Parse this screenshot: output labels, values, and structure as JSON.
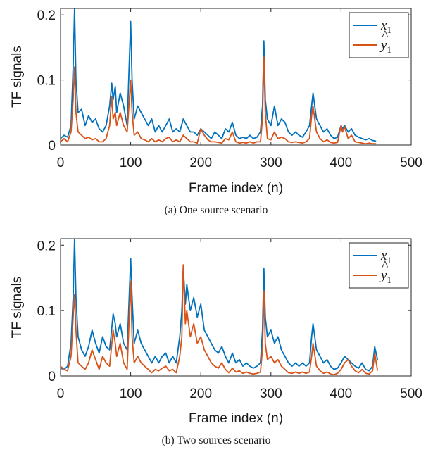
{
  "chart_data": [
    {
      "type": "line",
      "caption": "(a) One source scenario",
      "xlabel": "Frame index (n)",
      "ylabel": "TF signals",
      "xlim": [
        0,
        500
      ],
      "ylim": [
        0,
        0.21
      ],
      "xticks": [
        "0",
        "100",
        "200",
        "300",
        "400",
        "500"
      ],
      "yticks": [
        "0",
        "0.1",
        "0.2"
      ],
      "legend_position": "top-right",
      "grid": false,
      "series": [
        {
          "name": "x1",
          "legend_main": "x",
          "legend_sub": "1",
          "color": "#0072bd",
          "x": [
            0,
            5,
            10,
            15,
            18,
            20,
            22,
            25,
            30,
            35,
            40,
            45,
            50,
            55,
            60,
            65,
            70,
            73,
            75,
            78,
            80,
            85,
            90,
            95,
            100,
            102,
            105,
            110,
            115,
            120,
            125,
            130,
            135,
            140,
            145,
            150,
            155,
            160,
            165,
            170,
            175,
            180,
            185,
            190,
            195,
            200,
            205,
            210,
            215,
            220,
            225,
            230,
            235,
            240,
            245,
            250,
            255,
            260,
            265,
            270,
            275,
            280,
            285,
            288,
            290,
            292,
            295,
            300,
            305,
            310,
            315,
            320,
            325,
            330,
            335,
            340,
            345,
            350,
            355,
            358,
            360,
            365,
            370,
            375,
            380,
            385,
            390,
            395,
            400,
            402,
            405,
            410,
            415,
            420,
            425,
            430,
            435,
            440,
            445,
            450
          ],
          "y": [
            0.01,
            0.015,
            0.012,
            0.03,
            0.12,
            0.21,
            0.1,
            0.05,
            0.055,
            0.03,
            0.045,
            0.035,
            0.04,
            0.025,
            0.02,
            0.03,
            0.06,
            0.095,
            0.07,
            0.09,
            0.05,
            0.08,
            0.06,
            0.03,
            0.19,
            0.1,
            0.04,
            0.06,
            0.05,
            0.04,
            0.03,
            0.04,
            0.02,
            0.03,
            0.02,
            0.03,
            0.04,
            0.02,
            0.025,
            0.02,
            0.04,
            0.03,
            0.02,
            0.02,
            0.015,
            0.025,
            0.02,
            0.015,
            0.01,
            0.02,
            0.015,
            0.01,
            0.025,
            0.02,
            0.035,
            0.015,
            0.01,
            0.012,
            0.01,
            0.015,
            0.01,
            0.012,
            0.02,
            0.06,
            0.16,
            0.07,
            0.04,
            0.03,
            0.06,
            0.03,
            0.04,
            0.035,
            0.02,
            0.015,
            0.02,
            0.015,
            0.012,
            0.02,
            0.03,
            0.06,
            0.08,
            0.04,
            0.03,
            0.02,
            0.025,
            0.015,
            0.01,
            0.012,
            0.03,
            0.025,
            0.03,
            0.02,
            0.025,
            0.015,
            0.012,
            0.01,
            0.008,
            0.01,
            0.007,
            0.006
          ]
        },
        {
          "name": "y1_hat",
          "legend_main": "y",
          "legend_sub": "1",
          "color": "#d95319",
          "x": [
            0,
            5,
            10,
            15,
            18,
            20,
            22,
            25,
            30,
            35,
            40,
            45,
            50,
            55,
            60,
            65,
            70,
            73,
            75,
            78,
            80,
            85,
            90,
            95,
            100,
            102,
            105,
            110,
            115,
            120,
            125,
            130,
            135,
            140,
            145,
            150,
            155,
            160,
            165,
            170,
            175,
            180,
            185,
            190,
            195,
            200,
            205,
            210,
            215,
            220,
            225,
            230,
            235,
            240,
            245,
            250,
            255,
            260,
            265,
            270,
            275,
            280,
            285,
            288,
            290,
            292,
            295,
            300,
            305,
            310,
            315,
            320,
            325,
            330,
            335,
            340,
            345,
            350,
            355,
            358,
            360,
            365,
            370,
            375,
            380,
            385,
            390,
            395,
            400,
            402,
            405,
            410,
            415,
            420,
            425,
            430,
            435,
            440,
            445,
            450
          ],
          "y": [
            0.005,
            0.01,
            0.005,
            0.02,
            0.07,
            0.12,
            0.05,
            0.02,
            0.015,
            0.01,
            0.012,
            0.008,
            0.01,
            0.005,
            0.005,
            0.01,
            0.03,
            0.075,
            0.04,
            0.05,
            0.03,
            0.05,
            0.03,
            0.02,
            0.1,
            0.05,
            0.015,
            0.02,
            0.01,
            0.008,
            0.005,
            0.01,
            0.005,
            0.008,
            0.005,
            0.01,
            0.012,
            0.005,
            0.008,
            0.005,
            0.015,
            0.01,
            0.005,
            0.005,
            0.003,
            0.025,
            0.015,
            0.008,
            0.005,
            0.005,
            0.004,
            0.003,
            0.01,
            0.008,
            0.02,
            0.005,
            0.003,
            0.004,
            0.003,
            0.005,
            0.003,
            0.005,
            0.005,
            0.04,
            0.135,
            0.05,
            0.01,
            0.008,
            0.02,
            0.01,
            0.012,
            0.01,
            0.005,
            0.004,
            0.005,
            0.004,
            0.003,
            0.005,
            0.01,
            0.045,
            0.06,
            0.02,
            0.01,
            0.005,
            0.008,
            0.004,
            0.003,
            0.004,
            0.03,
            0.02,
            0.028,
            0.01,
            0.015,
            0.005,
            0.004,
            0.003,
            0.002,
            0.003,
            0.002,
            0.002
          ]
        }
      ]
    },
    {
      "type": "line",
      "caption": "(b) Two sources scenario",
      "xlabel": "Frame index (n)",
      "ylabel": "TF signals",
      "xlim": [
        0,
        500
      ],
      "ylim": [
        0,
        0.21
      ],
      "xticks": [
        "0",
        "100",
        "200",
        "300",
        "400",
        "500"
      ],
      "yticks": [
        "0",
        "0.1",
        "0.2"
      ],
      "legend_position": "top-right",
      "grid": false,
      "series": [
        {
          "name": "x1",
          "legend_main": "x",
          "legend_sub": "1",
          "color": "#0072bd",
          "x": [
            0,
            5,
            10,
            15,
            18,
            20,
            22,
            25,
            30,
            35,
            40,
            45,
            50,
            55,
            60,
            65,
            70,
            75,
            78,
            80,
            85,
            90,
            95,
            100,
            102,
            105,
            110,
            115,
            120,
            125,
            130,
            135,
            140,
            145,
            150,
            155,
            160,
            165,
            170,
            173,
            175,
            178,
            180,
            185,
            190,
            195,
            200,
            205,
            210,
            215,
            220,
            225,
            230,
            235,
            240,
            245,
            250,
            255,
            260,
            265,
            270,
            275,
            280,
            285,
            288,
            290,
            292,
            295,
            300,
            305,
            310,
            315,
            320,
            325,
            330,
            335,
            340,
            345,
            350,
            355,
            358,
            360,
            365,
            370,
            375,
            380,
            385,
            390,
            395,
            400,
            405,
            410,
            415,
            420,
            425,
            430,
            435,
            440,
            445,
            448,
            452
          ],
          "y": [
            0.012,
            0.01,
            0.015,
            0.05,
            0.12,
            0.21,
            0.12,
            0.06,
            0.04,
            0.03,
            0.045,
            0.07,
            0.05,
            0.035,
            0.06,
            0.045,
            0.04,
            0.095,
            0.08,
            0.06,
            0.08,
            0.05,
            0.04,
            0.18,
            0.12,
            0.05,
            0.07,
            0.05,
            0.04,
            0.03,
            0.02,
            0.03,
            0.02,
            0.03,
            0.035,
            0.02,
            0.03,
            0.02,
            0.06,
            0.1,
            0.165,
            0.11,
            0.14,
            0.1,
            0.12,
            0.09,
            0.11,
            0.07,
            0.06,
            0.05,
            0.04,
            0.035,
            0.045,
            0.03,
            0.02,
            0.035,
            0.02,
            0.025,
            0.015,
            0.02,
            0.015,
            0.012,
            0.015,
            0.02,
            0.07,
            0.165,
            0.09,
            0.06,
            0.07,
            0.05,
            0.06,
            0.04,
            0.03,
            0.02,
            0.015,
            0.02,
            0.015,
            0.02,
            0.015,
            0.02,
            0.06,
            0.08,
            0.04,
            0.03,
            0.02,
            0.025,
            0.015,
            0.01,
            0.012,
            0.02,
            0.03,
            0.025,
            0.02,
            0.015,
            0.012,
            0.02,
            0.01,
            0.008,
            0.015,
            0.045,
            0.025
          ]
        },
        {
          "name": "y1_hat",
          "legend_main": "y",
          "legend_sub": "1",
          "color": "#d95319",
          "x": [
            0,
            5,
            10,
            15,
            18,
            20,
            22,
            25,
            30,
            35,
            40,
            45,
            50,
            55,
            60,
            65,
            70,
            75,
            78,
            80,
            85,
            90,
            95,
            100,
            102,
            105,
            110,
            115,
            120,
            125,
            130,
            135,
            140,
            145,
            150,
            155,
            160,
            165,
            170,
            173,
            175,
            178,
            180,
            185,
            190,
            195,
            200,
            205,
            210,
            215,
            220,
            225,
            230,
            235,
            240,
            245,
            250,
            255,
            260,
            265,
            270,
            275,
            280,
            285,
            288,
            290,
            292,
            295,
            300,
            305,
            310,
            315,
            320,
            325,
            330,
            335,
            340,
            345,
            350,
            355,
            358,
            360,
            365,
            370,
            375,
            380,
            385,
            390,
            395,
            400,
            405,
            410,
            415,
            420,
            425,
            430,
            435,
            440,
            445,
            448,
            452
          ],
          "y": [
            0.015,
            0.01,
            0.008,
            0.03,
            0.09,
            0.125,
            0.07,
            0.02,
            0.015,
            0.01,
            0.02,
            0.04,
            0.025,
            0.01,
            0.03,
            0.02,
            0.015,
            0.07,
            0.05,
            0.03,
            0.05,
            0.02,
            0.01,
            0.145,
            0.06,
            0.02,
            0.03,
            0.02,
            0.015,
            0.01,
            0.005,
            0.01,
            0.008,
            0.012,
            0.015,
            0.008,
            0.01,
            0.005,
            0.03,
            0.06,
            0.17,
            0.08,
            0.1,
            0.06,
            0.08,
            0.05,
            0.06,
            0.04,
            0.03,
            0.02,
            0.015,
            0.012,
            0.02,
            0.01,
            0.005,
            0.012,
            0.006,
            0.008,
            0.004,
            0.006,
            0.004,
            0.003,
            0.004,
            0.006,
            0.04,
            0.13,
            0.05,
            0.025,
            0.03,
            0.02,
            0.025,
            0.015,
            0.01,
            0.005,
            0.004,
            0.006,
            0.004,
            0.006,
            0.004,
            0.006,
            0.03,
            0.05,
            0.015,
            0.008,
            0.004,
            0.006,
            0.003,
            0.002,
            0.004,
            0.01,
            0.02,
            0.025,
            0.015,
            0.008,
            0.005,
            0.01,
            0.004,
            0.003,
            0.008,
            0.035,
            0.008
          ]
        }
      ]
    }
  ]
}
